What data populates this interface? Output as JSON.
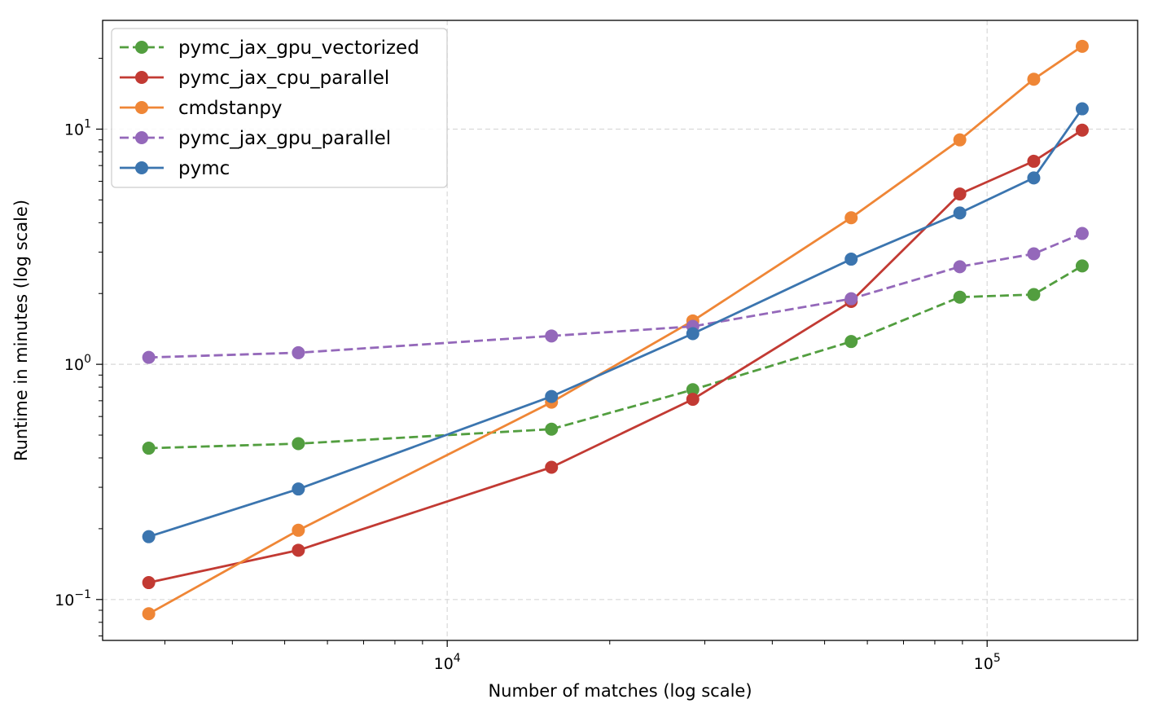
{
  "chart_data": {
    "type": "line",
    "title": "",
    "xlabel": "Number of matches (log scale)",
    "ylabel": "Runtime in minutes (log scale)",
    "xscale": "log",
    "yscale": "log",
    "xlim": [
      2300,
      190000
    ],
    "ylim": [
      0.067,
      29
    ],
    "grid": true,
    "legend_position": "upper-left",
    "x": [
      2800,
      5300,
      15600,
      28500,
      56000,
      89000,
      122000,
      150000
    ],
    "x_ticks": [
      {
        "base": "10",
        "exp": "4",
        "value": 10000
      },
      {
        "base": "10",
        "exp": "5",
        "value": 100000
      }
    ],
    "y_ticks": [
      {
        "base": "10",
        "exp": "−1",
        "value": 0.1
      },
      {
        "base": "10",
        "exp": "0",
        "value": 1
      },
      {
        "base": "10",
        "exp": "1",
        "value": 10
      }
    ],
    "series": [
      {
        "name": "pymc_jax_gpu_vectorized",
        "color": "#529e3f",
        "dashed": true,
        "values": [
          0.44,
          0.46,
          0.53,
          0.78,
          1.25,
          1.93,
          1.98,
          2.62
        ]
      },
      {
        "name": "pymc_jax_cpu_parallel",
        "color": "#c23a33",
        "dashed": false,
        "values": [
          0.118,
          0.162,
          0.365,
          0.71,
          1.85,
          5.3,
          7.3,
          9.9
        ]
      },
      {
        "name": "cmdstanpy",
        "color": "#ef8636",
        "dashed": false,
        "values": [
          0.087,
          0.197,
          0.69,
          1.53,
          4.2,
          9.0,
          16.3,
          22.5
        ]
      },
      {
        "name": "pymc_jax_gpu_parallel",
        "color": "#9468ba",
        "dashed": true,
        "values": [
          1.07,
          1.12,
          1.32,
          1.45,
          1.9,
          2.6,
          2.95,
          3.6
        ]
      },
      {
        "name": "pymc",
        "color": "#3b75af",
        "dashed": false,
        "values": [
          0.185,
          0.295,
          0.73,
          1.35,
          2.8,
          4.4,
          6.2,
          12.2
        ]
      }
    ]
  }
}
